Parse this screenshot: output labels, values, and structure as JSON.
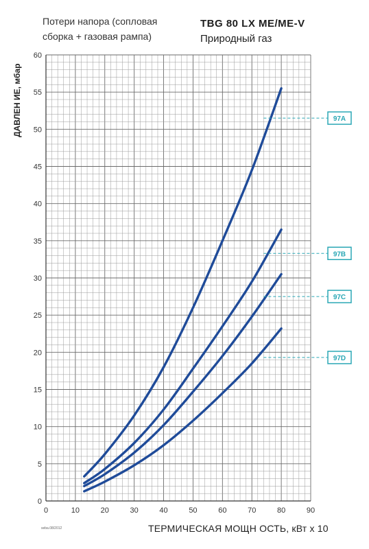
{
  "header": {
    "subtitle_line1": "Потери напора (сопловая",
    "subtitle_line2": "сборка + газовая рампа)",
    "model": "TBG 80 LX ME/ME-V",
    "fuel": "Природный газ"
  },
  "footnote": "seba.08/2012",
  "colors": {
    "curve": "#1f4b99",
    "tag": "#2aa7b5",
    "grid": "#9a9a9a",
    "grid_major": "#6a6a6a"
  },
  "chart_data": {
    "type": "line",
    "title": "TBG 80 LX ME/ME-V",
    "xlabel": "ТЕРМИЧЕСКАЯ МОЩН ОСТЬ, кВт х 10",
    "ylabel": "ДАВЛЕН ИЕ, мбар",
    "xlim": [
      0,
      90
    ],
    "ylim": [
      0,
      60
    ],
    "xticks": [
      0,
      10,
      20,
      30,
      40,
      50,
      60,
      70,
      80,
      90
    ],
    "yticks": [
      0,
      5,
      10,
      15,
      20,
      25,
      30,
      35,
      40,
      45,
      50,
      55,
      60
    ],
    "grid": true,
    "series": [
      {
        "name": "97A",
        "x": [
          13,
          20,
          30,
          40,
          50,
          60,
          70,
          80
        ],
        "y": [
          3.3,
          6.3,
          11.5,
          18.0,
          26.0,
          35.0,
          44.5,
          55.5
        ]
      },
      {
        "name": "97B",
        "x": [
          13,
          20,
          30,
          40,
          50,
          60,
          70,
          80
        ],
        "y": [
          2.4,
          4.3,
          7.8,
          12.3,
          17.8,
          23.5,
          29.5,
          36.5
        ]
      },
      {
        "name": "97C",
        "x": [
          13,
          20,
          30,
          40,
          50,
          60,
          70,
          80
        ],
        "y": [
          2.0,
          3.6,
          6.5,
          10.2,
          14.7,
          19.5,
          24.8,
          30.5
        ]
      },
      {
        "name": "97D",
        "x": [
          13,
          20,
          30,
          40,
          50,
          60,
          70,
          80
        ],
        "y": [
          1.3,
          2.6,
          4.8,
          7.5,
          10.8,
          14.5,
          18.5,
          23.2
        ]
      }
    ],
    "labels": [
      {
        "text": "97A",
        "y": 51.5
      },
      {
        "text": "97B",
        "y": 33.3
      },
      {
        "text": "97C",
        "y": 27.5
      },
      {
        "text": "97D",
        "y": 19.3
      }
    ]
  }
}
